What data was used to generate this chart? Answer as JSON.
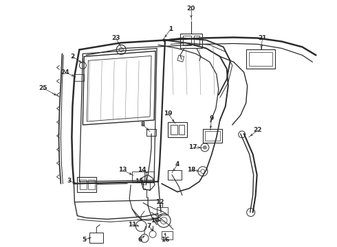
{
  "bg_color": "#ffffff",
  "line_color": "#2a2a2a",
  "label_color": "#1a1a1a",
  "label_fontsize": 6.5,
  "fig_width": 4.9,
  "fig_height": 3.6,
  "dpi": 100
}
